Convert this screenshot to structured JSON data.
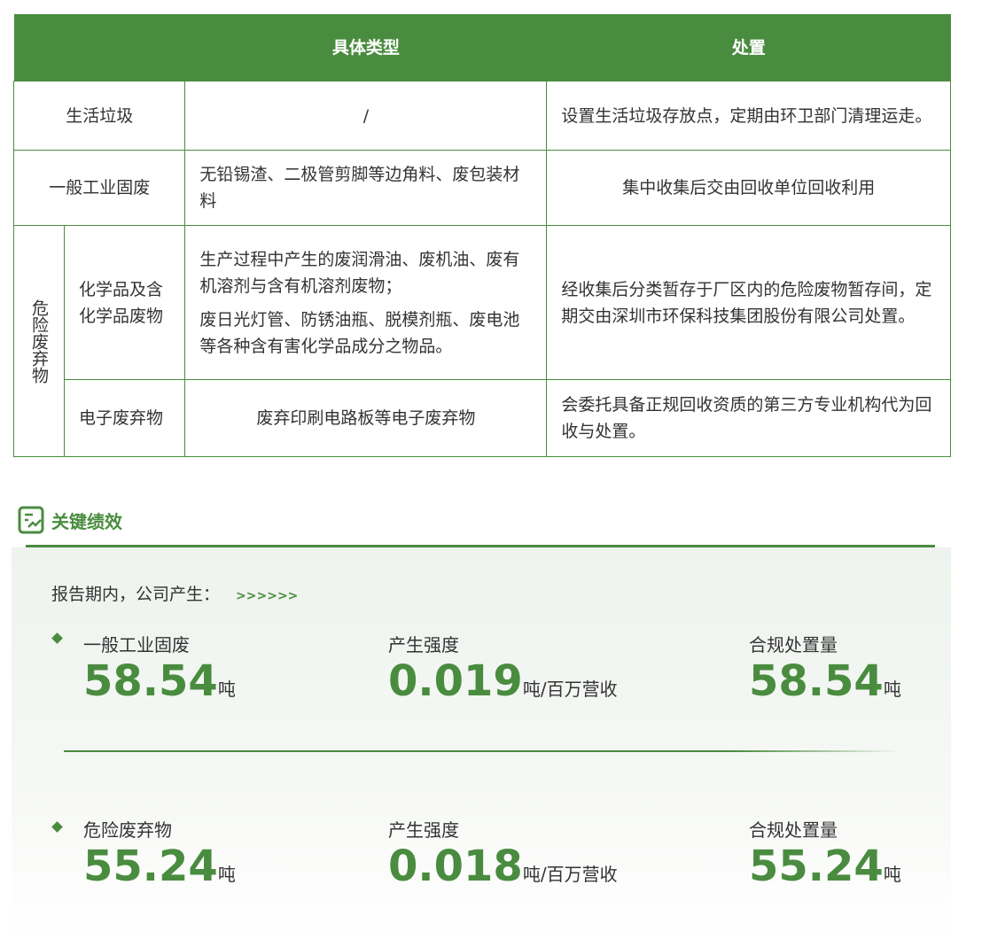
{
  "table": {
    "headers": [
      "",
      "具体类型",
      "处置"
    ],
    "rows": [
      {
        "category": "生活垃圾",
        "types": "/",
        "disposal": "设置生活垃圾存放点，定期由环卫部门清理运走。"
      },
      {
        "category": "一般工业固废",
        "types": "无铅锡渣、二极管剪脚等边角料、废包装材料",
        "disposal": "集中收集后交由回收单位回收利用"
      }
    ],
    "hazardous": {
      "label": "危险废弃物",
      "sub": [
        {
          "category": "化学品及含化学品废物",
          "types1": "生产过程中产生的废润滑油、废机油、废有机溶剂与含有机溶剂废物；",
          "types2": "废日光灯管、防锈油瓶、脱模剂瓶、废电池等各种含有害化学品成分之物品。",
          "disposal": "经收集后分类暂存于厂区内的危险废物暂存间，定期交由深圳市环保科技集团股份有限公司处置。"
        },
        {
          "category": "电子废弃物",
          "types": "废弃印刷电路板等电子废弃物",
          "disposal": "会委托具备正规回收资质的第三方专业机构代为回收与处置。"
        }
      ]
    }
  },
  "section": {
    "title": "关键绩效",
    "intro": "报告期内，公司产生：",
    "arrows": ">>>>>>"
  },
  "kpis": [
    {
      "label": "一般工业固废",
      "value": "58.54",
      "unit": "吨",
      "int_label": "产生强度",
      "int_value": "0.019",
      "int_unit": "吨/百万营收",
      "comp_label": "合规处置量",
      "comp_value": "58.54",
      "comp_unit": "吨"
    },
    {
      "label": "危险废弃物",
      "value": "55.24",
      "unit": "吨",
      "int_label": "产生强度",
      "int_value": "0.018",
      "int_unit": "吨/百万营收",
      "comp_label": "合规处置量",
      "comp_value": "55.24",
      "comp_unit": "吨"
    }
  ],
  "colors": {
    "accent": "#4a8c3f"
  }
}
